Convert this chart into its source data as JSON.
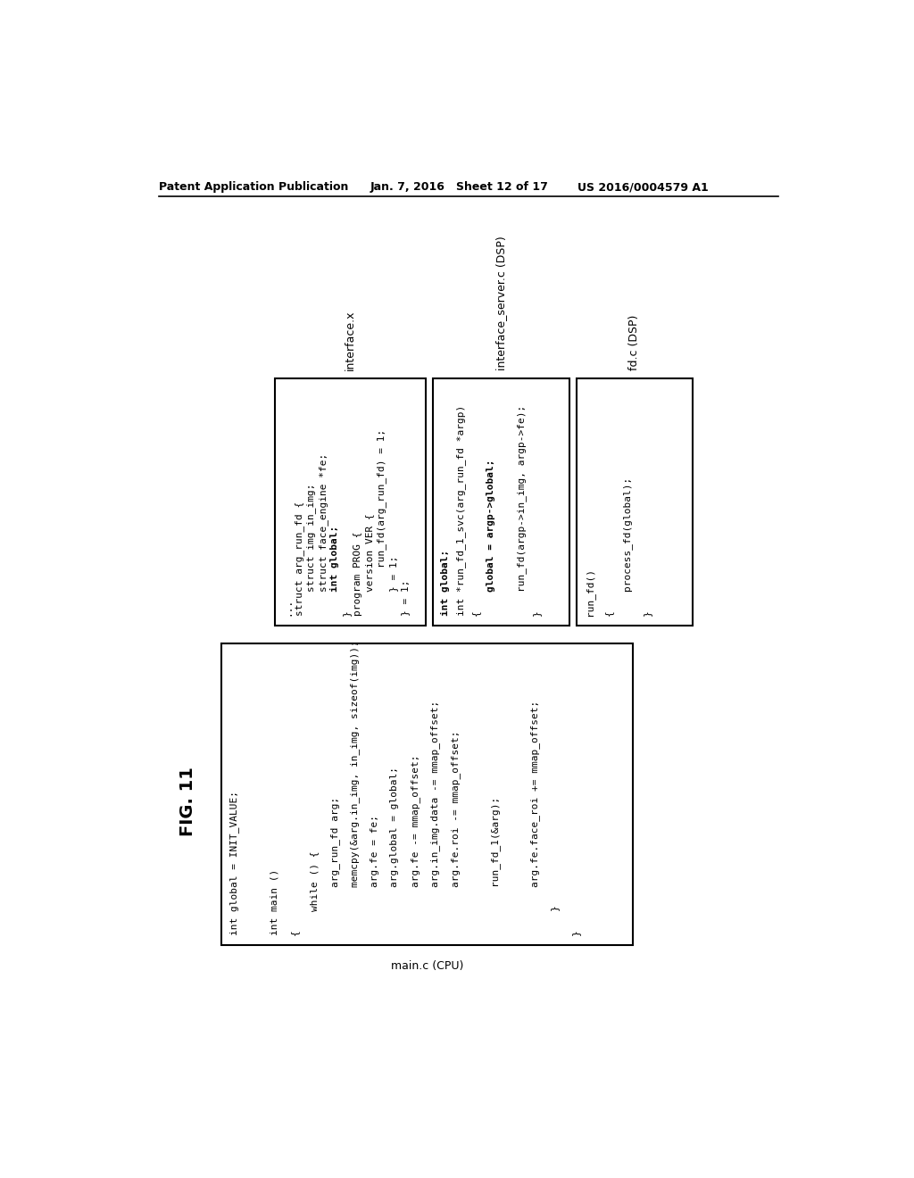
{
  "title": "FIG. 11",
  "header_left": "Patent Application Publication",
  "header_center": "Jan. 7, 2016   Sheet 12 of 17",
  "header_right": "US 2016/0004579 A1",
  "bg_color": "#ffffff",
  "text_color": "#000000",
  "label_interface_x": "interface.x",
  "label_interface_server": "interface_server.c (DSP)",
  "label_fd_c": "fd.c (DSP)",
  "label_main_c": "main.c (CPU)",
  "box_main_code": [
    "int global = INIT_VALUE;",
    "",
    "int main ()",
    "{",
    "    while () {",
    "        arg_run_fd arg;",
    "        memcpy(&arg.in_img, in_img, sizeof(img));",
    "        arg.fe = fe;",
    "        arg.global = global;",
    "        arg.fe -= mmap_offset;",
    "        arg.in_img.data -= mmap_offset;",
    "        arg.fe.roi -= mmap_offset;",
    "",
    "        run_fd_1(&arg);",
    "",
    "        arg.fe.face_roi += mmap_offset;",
    "    }",
    "}"
  ],
  "box_main_bold": [
    "arg.global = global;"
  ],
  "box_interface_code": [
    "...",
    "struct arg_run_fd {",
    "    struct img in_img;",
    "    struct face_engine *fe;",
    "    int global;",
    "}",
    "program PROG {",
    "    version VER {",
    "        run_fd(arg_run_fd) = 1;",
    "    } = 1;",
    "} = 1;"
  ],
  "box_interface_bold": [
    "    int global;"
  ],
  "box_server_code": [
    "int global;",
    "int *run_fd_1_svc(arg_run_fd *argp)",
    "{",
    "    global = argp->global;",
    "",
    "    run_fd(argp->in_img, argp->fe);",
    "}"
  ],
  "box_server_bold": [
    "int global;",
    "    global = argp->global;"
  ],
  "box_fd_code": [
    "run_fd()",
    "{",
    "    process_fd(global);",
    "}"
  ],
  "box_fd_bold": []
}
